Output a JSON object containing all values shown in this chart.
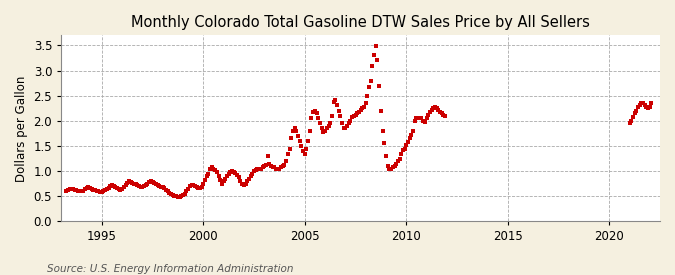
{
  "title": "Monthly Colorado Total Gasoline DTW Sales Price by All Sellers",
  "ylabel": "Dollars per Gallon",
  "source": "Source: U.S. Energy Information Administration",
  "background_color": "#f5f0e0",
  "plot_background": "#ffffff",
  "marker_color": "#cc0000",
  "marker": "s",
  "markersize": 2.5,
  "xlim_left": 1993.0,
  "xlim_right": 2022.5,
  "ylim_bottom": 0.0,
  "ylim_top": 3.7,
  "yticks": [
    0.0,
    0.5,
    1.0,
    1.5,
    2.0,
    2.5,
    3.0,
    3.5
  ],
  "xticks": [
    1995,
    2000,
    2005,
    2010,
    2015,
    2020
  ],
  "grid_color": "#aaaaaa",
  "title_fontsize": 10.5,
  "label_fontsize": 8.5,
  "tick_fontsize": 8.5,
  "source_fontsize": 7.5,
  "dates": [
    1993.25,
    1993.33,
    1993.42,
    1993.5,
    1993.58,
    1993.67,
    1993.75,
    1993.83,
    1993.92,
    1994.0,
    1994.08,
    1994.17,
    1994.25,
    1994.33,
    1994.42,
    1994.5,
    1994.58,
    1994.67,
    1994.75,
    1994.83,
    1994.92,
    1995.0,
    1995.08,
    1995.17,
    1995.25,
    1995.33,
    1995.42,
    1995.5,
    1995.58,
    1995.67,
    1995.75,
    1995.83,
    1995.92,
    1996.0,
    1996.08,
    1996.17,
    1996.25,
    1996.33,
    1996.42,
    1996.5,
    1996.58,
    1996.67,
    1996.75,
    1996.83,
    1996.92,
    1997.0,
    1997.08,
    1997.17,
    1997.25,
    1997.33,
    1997.42,
    1997.5,
    1997.58,
    1997.67,
    1997.75,
    1997.83,
    1997.92,
    1998.0,
    1998.08,
    1998.17,
    1998.25,
    1998.33,
    1998.42,
    1998.5,
    1998.58,
    1998.67,
    1998.75,
    1998.83,
    1998.92,
    1999.0,
    1999.08,
    1999.17,
    1999.25,
    1999.33,
    1999.42,
    1999.5,
    1999.58,
    1999.67,
    1999.75,
    1999.83,
    1999.92,
    2000.0,
    2000.08,
    2000.17,
    2000.25,
    2000.33,
    2000.42,
    2000.5,
    2000.58,
    2000.67,
    2000.75,
    2000.83,
    2000.92,
    2001.0,
    2001.08,
    2001.17,
    2001.25,
    2001.33,
    2001.42,
    2001.5,
    2001.58,
    2001.67,
    2001.75,
    2001.83,
    2001.92,
    2002.0,
    2002.08,
    2002.17,
    2002.25,
    2002.33,
    2002.42,
    2002.5,
    2002.58,
    2002.67,
    2002.75,
    2002.83,
    2002.92,
    2003.0,
    2003.08,
    2003.17,
    2003.25,
    2003.33,
    2003.42,
    2003.5,
    2003.58,
    2003.67,
    2003.75,
    2003.83,
    2003.92,
    2004.0,
    2004.08,
    2004.17,
    2004.25,
    2004.33,
    2004.42,
    2004.5,
    2004.58,
    2004.67,
    2004.75,
    2004.83,
    2004.92,
    2005.0,
    2005.08,
    2005.17,
    2005.25,
    2005.33,
    2005.42,
    2005.5,
    2005.58,
    2005.67,
    2005.75,
    2005.83,
    2005.92,
    2006.0,
    2006.08,
    2006.17,
    2006.25,
    2006.33,
    2006.42,
    2006.5,
    2006.58,
    2006.67,
    2006.75,
    2006.83,
    2006.92,
    2007.0,
    2007.08,
    2007.17,
    2007.25,
    2007.33,
    2007.42,
    2007.5,
    2007.58,
    2007.67,
    2007.75,
    2007.83,
    2007.92,
    2008.0,
    2008.08,
    2008.17,
    2008.25,
    2008.33,
    2008.42,
    2008.5,
    2008.58,
    2008.67,
    2008.75,
    2008.83,
    2008.92,
    2009.0,
    2009.08,
    2009.17,
    2009.25,
    2009.33,
    2009.42,
    2009.5,
    2009.58,
    2009.67,
    2009.75,
    2009.83,
    2009.92,
    2010.0,
    2010.08,
    2010.17,
    2010.25,
    2010.33,
    2010.42,
    2010.5,
    2010.58,
    2010.67,
    2010.75,
    2010.83,
    2010.92,
    2011.0,
    2011.08,
    2011.17,
    2011.25,
    2011.33,
    2011.42,
    2011.5,
    2011.58,
    2011.67,
    2011.75,
    2011.83,
    2011.92,
    2021.0,
    2021.08,
    2021.17,
    2021.25,
    2021.33,
    2021.42,
    2021.5,
    2021.58,
    2021.67,
    2021.75,
    2021.83,
    2021.92,
    2022.0,
    2022.08
  ],
  "values": [
    0.6,
    0.62,
    0.64,
    0.65,
    0.64,
    0.63,
    0.62,
    0.61,
    0.6,
    0.6,
    0.61,
    0.64,
    0.67,
    0.68,
    0.67,
    0.65,
    0.63,
    0.62,
    0.61,
    0.6,
    0.59,
    0.59,
    0.6,
    0.62,
    0.65,
    0.67,
    0.7,
    0.72,
    0.7,
    0.68,
    0.66,
    0.64,
    0.62,
    0.65,
    0.68,
    0.72,
    0.76,
    0.8,
    0.78,
    0.77,
    0.75,
    0.74,
    0.72,
    0.7,
    0.68,
    0.68,
    0.7,
    0.73,
    0.75,
    0.78,
    0.8,
    0.79,
    0.77,
    0.75,
    0.73,
    0.71,
    0.69,
    0.68,
    0.66,
    0.63,
    0.6,
    0.57,
    0.54,
    0.52,
    0.51,
    0.5,
    0.49,
    0.49,
    0.5,
    0.52,
    0.55,
    0.6,
    0.65,
    0.7,
    0.73,
    0.72,
    0.7,
    0.68,
    0.67,
    0.67,
    0.68,
    0.75,
    0.82,
    0.9,
    0.95,
    1.05,
    1.08,
    1.05,
    1.02,
    0.98,
    0.9,
    0.82,
    0.75,
    0.8,
    0.85,
    0.9,
    0.95,
    0.98,
    1.0,
    0.98,
    0.96,
    0.92,
    0.88,
    0.8,
    0.75,
    0.72,
    0.75,
    0.8,
    0.85,
    0.9,
    0.95,
    1.0,
    1.02,
    1.05,
    1.05,
    1.05,
    1.08,
    1.1,
    1.12,
    1.3,
    1.15,
    1.1,
    1.08,
    1.08,
    1.05,
    1.05,
    1.05,
    1.08,
    1.1,
    1.12,
    1.2,
    1.35,
    1.45,
    1.65,
    1.8,
    1.85,
    1.8,
    1.7,
    1.6,
    1.5,
    1.4,
    1.35,
    1.45,
    1.6,
    1.8,
    2.05,
    2.18,
    2.2,
    2.15,
    2.05,
    1.95,
    1.85,
    1.78,
    1.8,
    1.85,
    1.9,
    1.95,
    2.1,
    2.38,
    2.42,
    2.32,
    2.2,
    2.1,
    1.95,
    1.85,
    1.85,
    1.9,
    1.95,
    2.0,
    2.08,
    2.1,
    2.12,
    2.15,
    2.18,
    2.22,
    2.25,
    2.28,
    2.35,
    2.5,
    2.68,
    2.8,
    3.1,
    3.3,
    3.48,
    3.2,
    2.7,
    2.2,
    1.8,
    1.55,
    1.3,
    1.1,
    1.05,
    1.05,
    1.08,
    1.1,
    1.15,
    1.2,
    1.25,
    1.35,
    1.42,
    1.45,
    1.52,
    1.58,
    1.65,
    1.72,
    1.8,
    2.0,
    2.05,
    2.05,
    2.05,
    2.05,
    2.0,
    1.98,
    2.05,
    2.12,
    2.18,
    2.22,
    2.25,
    2.28,
    2.25,
    2.22,
    2.18,
    2.15,
    2.12,
    2.1,
    1.95,
    2.0,
    2.08,
    2.15,
    2.2,
    2.28,
    2.32,
    2.35,
    2.35,
    2.32,
    2.28,
    2.25,
    2.28,
    2.35
  ]
}
